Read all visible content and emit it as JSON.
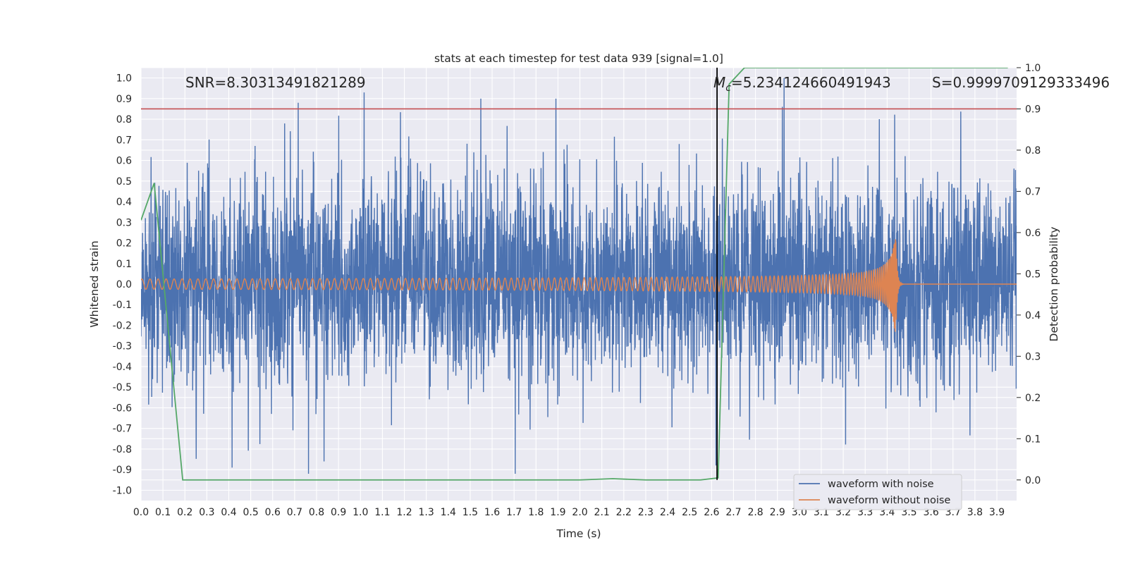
{
  "chart_data": {
    "type": "line",
    "title": "stats at each timestep for test data 939 [signal=1.0]",
    "xlabel": "Time (s)",
    "ylabel_left": "Whitened strain",
    "ylabel_right": "Detection probability",
    "xlim": [
      0.0,
      3.99
    ],
    "ylim_left": [
      -1.05,
      1.05
    ],
    "ylim_right": [
      -0.05,
      1.0
    ],
    "x_ticks": [
      "0.0",
      "0.1",
      "0.2",
      "0.3",
      "0.4",
      "0.5",
      "0.6",
      "0.7",
      "0.8",
      "0.9",
      "1.0",
      "1.1",
      "1.2",
      "1.3",
      "1.4",
      "1.5",
      "1.6",
      "1.7",
      "1.8",
      "1.9",
      "2.0",
      "2.1",
      "2.2",
      "2.3",
      "2.4",
      "2.5",
      "2.6",
      "2.7",
      "2.8",
      "2.9",
      "3.0",
      "3.1",
      "3.2",
      "3.3",
      "3.4",
      "3.5",
      "3.6",
      "3.7",
      "3.8",
      "3.9"
    ],
    "y_ticks_left": [
      "1.0",
      "0.9",
      "0.8",
      "0.7",
      "0.6",
      "0.5",
      "0.4",
      "0.3",
      "0.2",
      "0.1",
      "0.0",
      "-0.1",
      "-0.2",
      "-0.3",
      "-0.4",
      "-0.5",
      "-0.6",
      "-0.7",
      "-0.8",
      "-0.9",
      "-1.0"
    ],
    "y_ticks_right": [
      "1.0",
      "0.9",
      "0.8",
      "0.7",
      "0.6",
      "0.5",
      "0.4",
      "0.3",
      "0.2",
      "0.1",
      "0.0"
    ],
    "grid": true,
    "legend_placement": "lower right",
    "annotations": {
      "snr": "SNR=8.30313491821289",
      "mc_symbol": "M",
      "mc_sub": "c",
      "mc_value": "=5.234124660491943",
      "s": "S=0.9999709129333496"
    },
    "threshold": {
      "value_right": 0.9,
      "color": "#c44e52"
    },
    "marker_time": 2.625,
    "series": [
      {
        "name": "waveform with noise",
        "color": "#4c72b0",
        "axis": "left",
        "description_values": "noise-dominated strain oscillating roughly between -0.7 and 0.7 across 0.0–3.99 s, peaks near 0.93 at 1.02 s and 1.0 at 2.93 s"
      },
      {
        "name": "waveform without noise",
        "color": "#dd8452",
        "axis": "left",
        "chirp": {
          "start_amplitude": 0.025,
          "end_amplitude": 0.24,
          "merger_time": 3.44
        }
      },
      {
        "name": "detection probability",
        "color": "#55a868",
        "axis": "right",
        "x": [
          0.0,
          0.06,
          0.19,
          0.3,
          0.8,
          1.5,
          2.0,
          2.15,
          2.3,
          2.55,
          2.63,
          2.68,
          2.75,
          3.5,
          3.95
        ],
        "values": [
          0.63,
          0.72,
          0.0,
          0.0,
          0.0,
          0.0,
          0.0,
          0.003,
          0.0,
          0.0,
          0.005,
          0.96,
          1.0,
          1.0,
          1.0
        ]
      }
    ],
    "colors": {
      "plot_background": "#eaeaf2",
      "grid": "#ffffff",
      "marker_line": "#000000"
    }
  }
}
